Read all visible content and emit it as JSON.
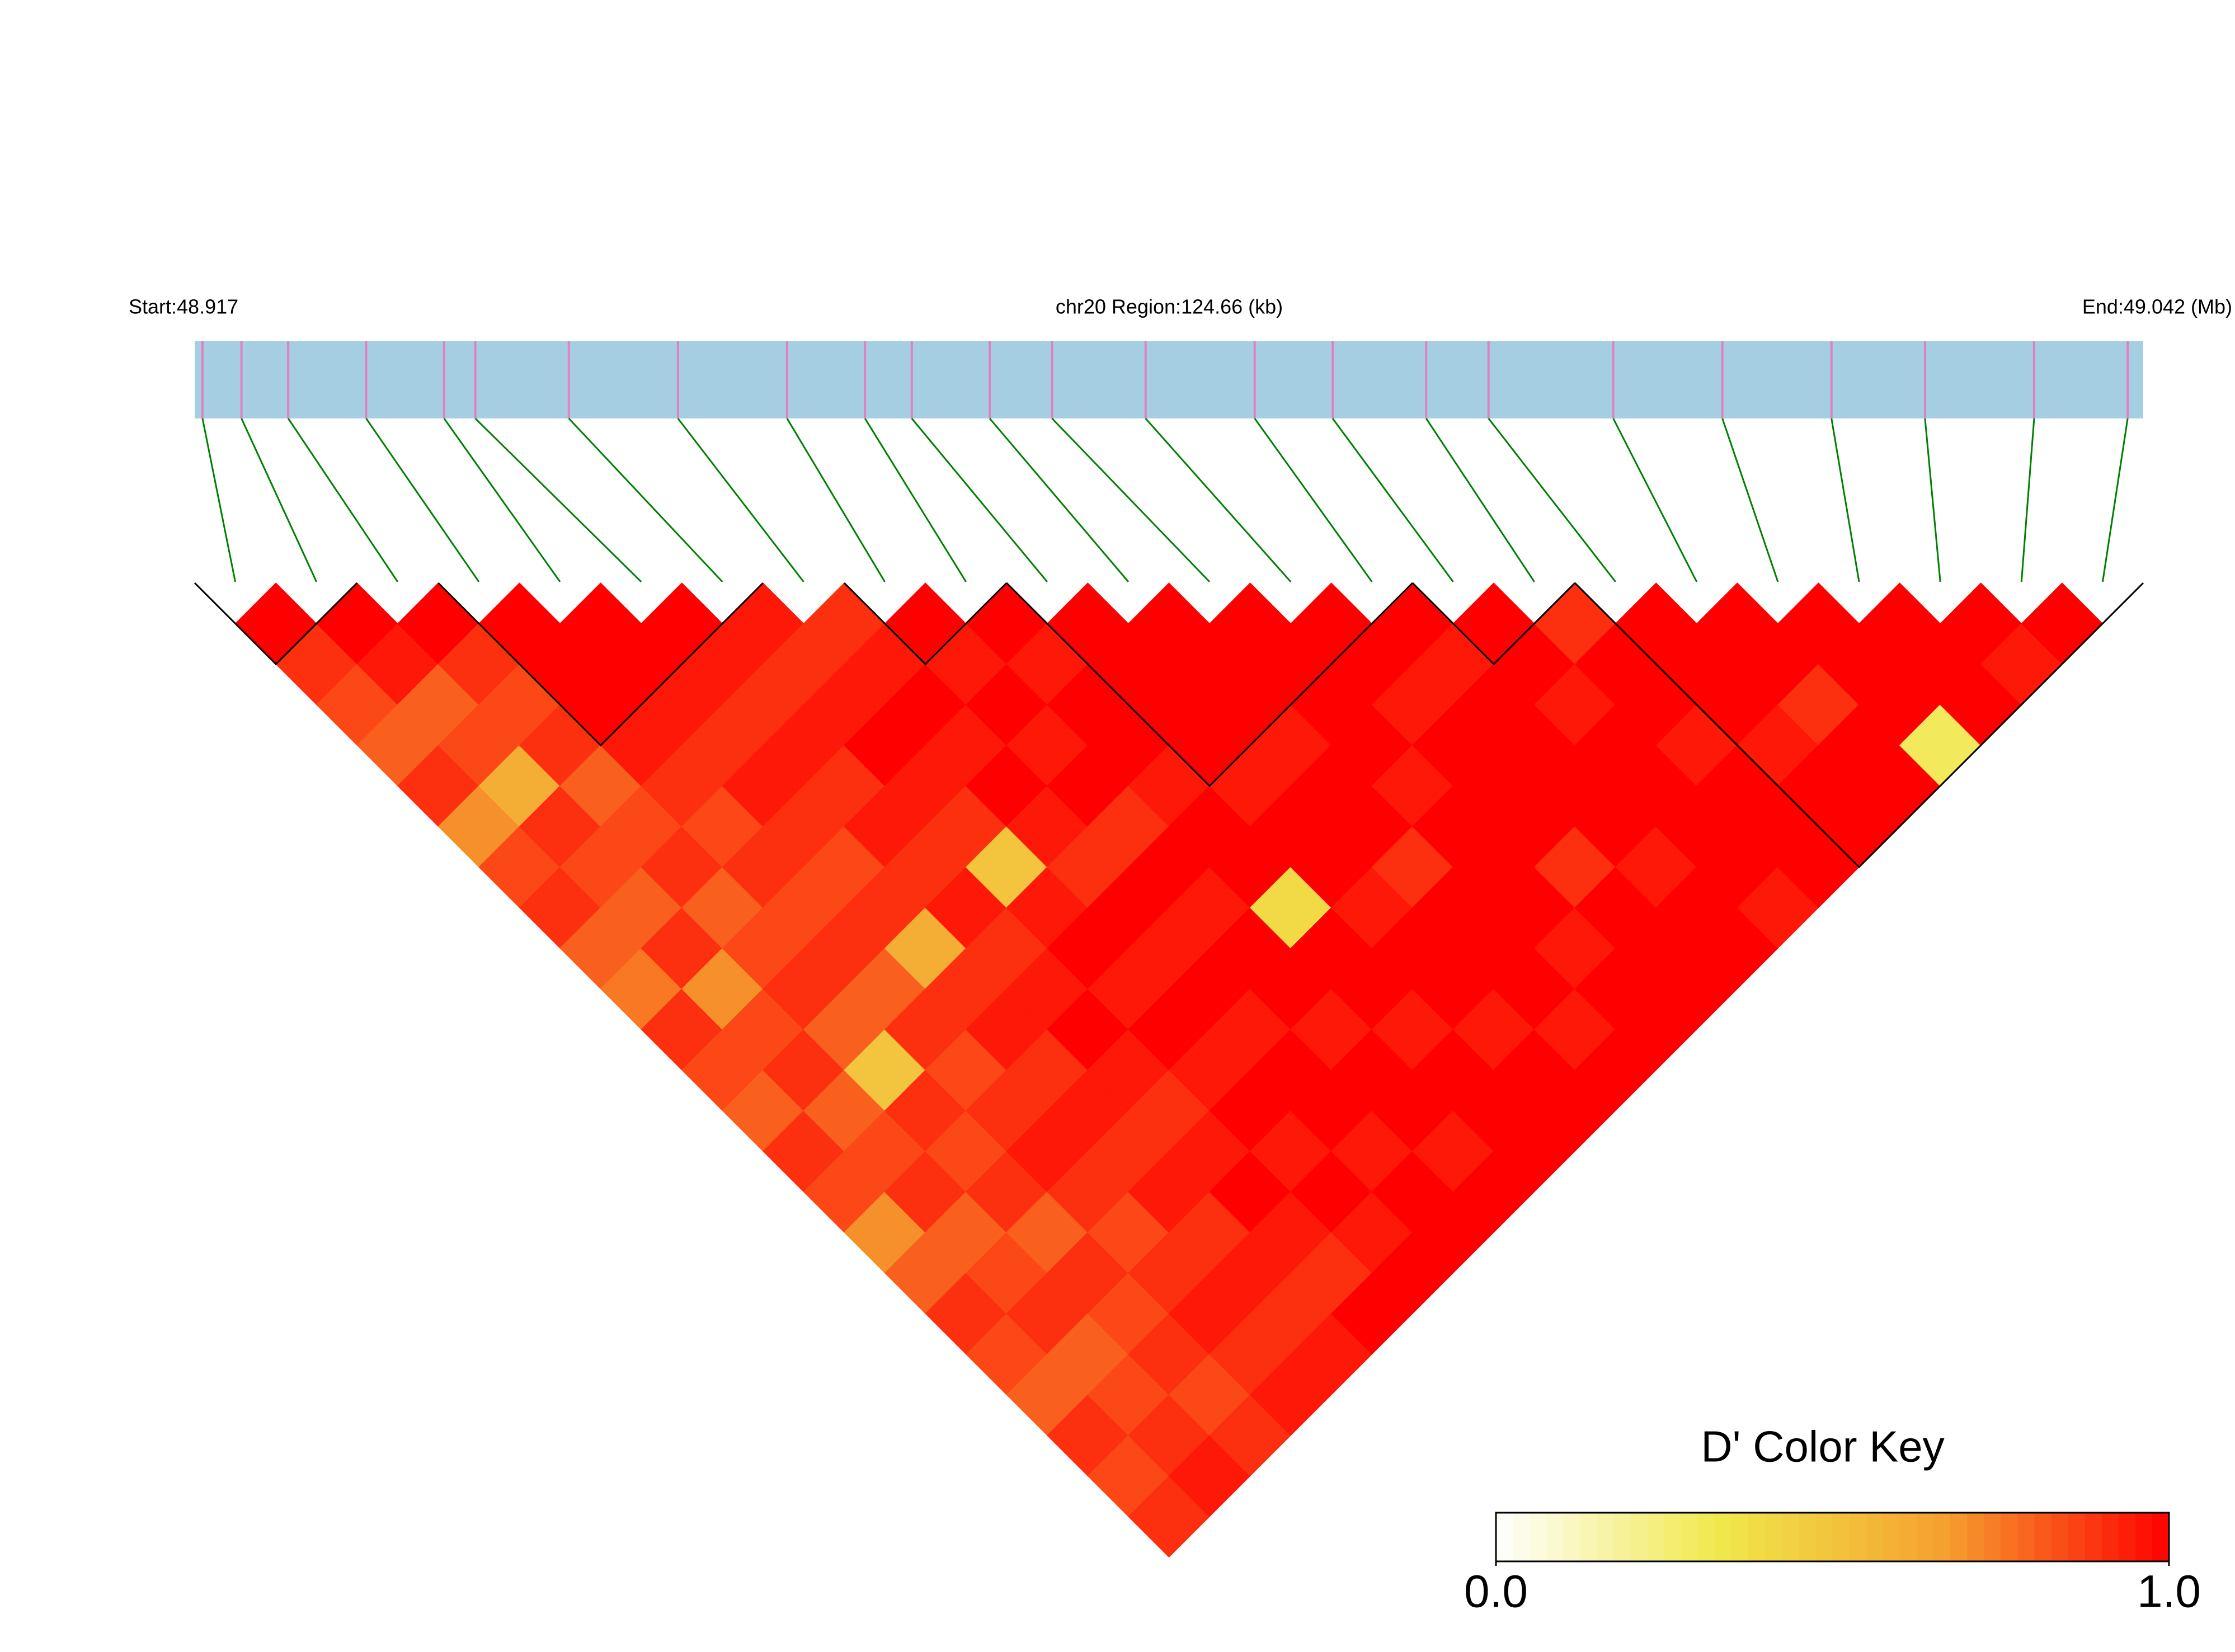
{
  "chart_data": {
    "type": "ld_heatmap",
    "title": "chr20 Region:124.66 (kb)",
    "start_label": "Start:48.917",
    "end_label": "End:49.042 (Mb)",
    "xlim": [
      48.917,
      49.042
    ],
    "snp_positions": [
      48.9175,
      48.92,
      48.923,
      48.928,
      48.933,
      48.935,
      48.941,
      48.948,
      48.955,
      48.96,
      48.963,
      48.968,
      48.972,
      48.978,
      48.985,
      48.99,
      48.996,
      49.0,
      49.008,
      49.015,
      49.022,
      49.028,
      49.035,
      49.041
    ],
    "dprime": [
      [
        1,
        0.9,
        0.85,
        0.8,
        0.9,
        0.7,
        0.85,
        0.9,
        0.8,
        0.75,
        0.9,
        0.85,
        0.8,
        0.9,
        0.85,
        0.7,
        0.8,
        0.9,
        0.85,
        0.8,
        0.9,
        0.85,
        0.9
      ],
      [
        1,
        0.95,
        0.8,
        0.85,
        0.6,
        0.9,
        0.85,
        0.8,
        0.9,
        0.7,
        0.85,
        0.9,
        0.8,
        0.85,
        0.9,
        0.8,
        0.85,
        0.9,
        0.8,
        0.85,
        0.9,
        0.95
      ],
      [
        1,
        0.9,
        0.85,
        0.9,
        0.8,
        0.85,
        0.9,
        0.8,
        0.85,
        0.9,
        0.8,
        0.5,
        0.9,
        0.85,
        0.9,
        0.8,
        0.9,
        0.85,
        0.9,
        0.85,
        0.9
      ],
      [
        1,
        1,
        1,
        0.95,
        0.9,
        0.85,
        0.9,
        0.85,
        0.9,
        0.8,
        0.9,
        0.85,
        0.9,
        0.95,
        0.9,
        0.85,
        0.9,
        0.95,
        0.9,
        0.95
      ],
      [
        1,
        1,
        0.95,
        0.9,
        0.95,
        0.9,
        0.85,
        0.9,
        0.6,
        0.9,
        0.95,
        0.9,
        0.95,
        0.9,
        0.95,
        0.9,
        0.95,
        0.9,
        0.95
      ],
      [
        1,
        0.95,
        0.9,
        0.95,
        0.9,
        0.95,
        0.9,
        0.95,
        0.9,
        0.95,
        1,
        0.95,
        0.9,
        0.95,
        1,
        0.95,
        0.9,
        1
      ],
      [
        0.95,
        0.9,
        0.95,
        1,
        0.95,
        0.9,
        0.5,
        0.95,
        1,
        0.95,
        1,
        0.95,
        1,
        0.95,
        1,
        0.95,
        1
      ],
      [
        0.9,
        0.95,
        1,
        0.95,
        1,
        0.95,
        0.9,
        1,
        0.95,
        1,
        0.95,
        1,
        1,
        0.95,
        1,
        1
      ],
      [
        1,
        0.95,
        1,
        0.95,
        1,
        0.9,
        1,
        0.95,
        1,
        1,
        0.95,
        1,
        1,
        0.95,
        1
      ],
      [
        1,
        0.95,
        1,
        1,
        0.95,
        1,
        1,
        0.4,
        1,
        1,
        0.95,
        1,
        1,
        1
      ],
      [
        1,
        1,
        1,
        1,
        0.95,
        1,
        1,
        0.95,
        1,
        1,
        0.95,
        1,
        1
      ],
      [
        1,
        1,
        1,
        0.95,
        1,
        1,
        0.9,
        1,
        1,
        1,
        0.95,
        1
      ],
      [
        1,
        1,
        1,
        1,
        0.95,
        1,
        1,
        1,
        0.95,
        1,
        1
      ],
      [
        1,
        1,
        0.95,
        1,
        1,
        1,
        0.9,
        1,
        1,
        1
      ],
      [
        1,
        0.95,
        1,
        1,
        1,
        1,
        0.95,
        1,
        1
      ],
      [
        1,
        1,
        0.95,
        1,
        1,
        1,
        1,
        0.95
      ],
      [
        0.9,
        1,
        1,
        0.95,
        1,
        1,
        1
      ],
      [
        1,
        1,
        1,
        0.95,
        1,
        1
      ],
      [
        1,
        1,
        0.9,
        1,
        1
      ],
      [
        1,
        1,
        1,
        0.3
      ],
      [
        1,
        1,
        1
      ],
      [
        1,
        0.95
      ],
      [
        1
      ]
    ],
    "blocks": [
      [
        0,
        1
      ],
      [
        3,
        6
      ],
      [
        8,
        9
      ],
      [
        10,
        14
      ],
      [
        15,
        16
      ],
      [
        17,
        23
      ]
    ],
    "scale_colors": [
      "#ffffff",
      "#f0e84a",
      "#f5a030",
      "#ff0000"
    ],
    "bar_color": "#a6cee3",
    "snp_line_color": "#e080c0",
    "connector_color": "#008000",
    "color_key": {
      "title": "D' Color Key",
      "ticks": [
        {
          "value": 0,
          "label": "0.0"
        },
        {
          "value": 1,
          "label": "1.0"
        }
      ]
    }
  }
}
